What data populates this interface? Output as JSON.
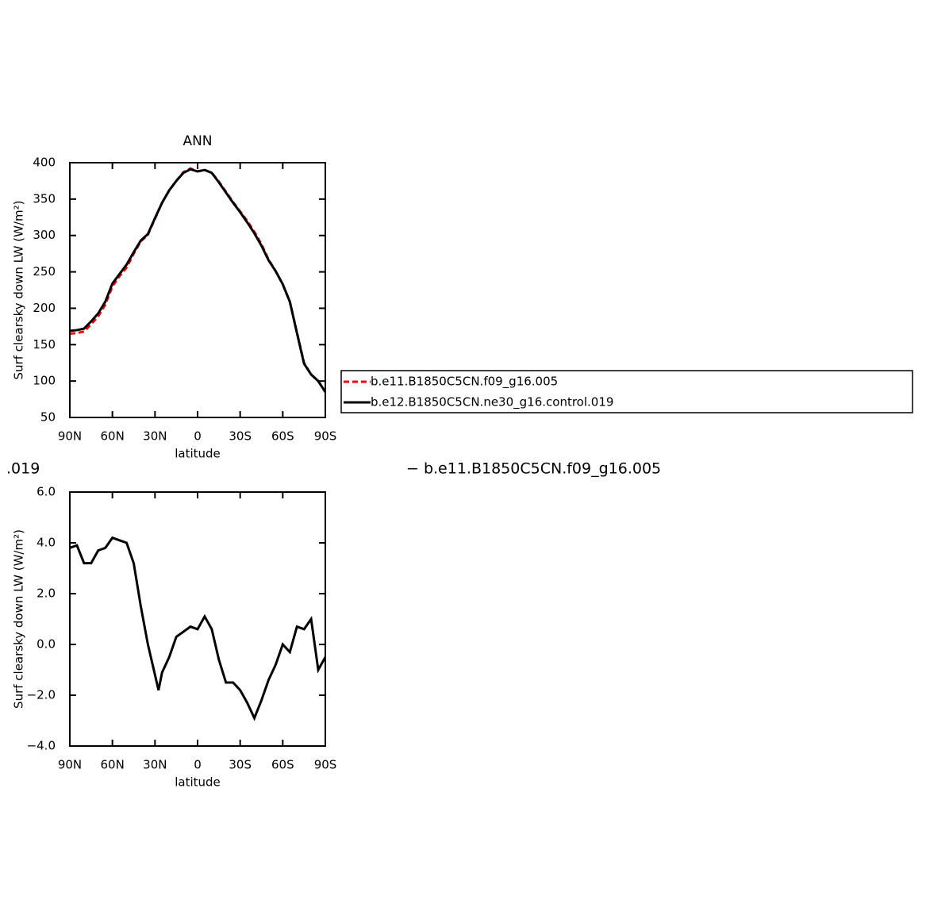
{
  "chart_data": [
    {
      "type": "line",
      "title": "ANN",
      "xlabel": "latitude",
      "ylabel": "Surf clearsky down LW (W/m²)",
      "x": [
        90,
        85,
        80,
        75,
        70,
        65,
        60,
        55,
        50,
        45,
        40,
        35,
        30,
        25,
        20,
        15,
        10,
        5,
        0,
        -5,
        -10,
        -15,
        -20,
        -25,
        -30,
        -35,
        -40,
        -45,
        -50,
        -55,
        -60,
        -65,
        -70,
        -75,
        -80,
        -85,
        -90
      ],
      "series": [
        {
          "name": "b.e11.B1850C5CN.f09_g16.005",
          "color": "#ff0000",
          "line_style": "dashed",
          "values": [
            165,
            166,
            168,
            178,
            189,
            205,
            230,
            244,
            256,
            275,
            292,
            301,
            323,
            345,
            362,
            375,
            387,
            392,
            388,
            390,
            386,
            374,
            360,
            346,
            333,
            320,
            305,
            288,
            267,
            251,
            233,
            209,
            167,
            125,
            109,
            100,
            85
          ]
        },
        {
          "name": "b.e12.B1850C5CN.ne30_g16.control.019",
          "color": "#000000",
          "line_style": "solid",
          "values": [
            169,
            170,
            172,
            182,
            193,
            209,
            234,
            247,
            260,
            277,
            293,
            302,
            324,
            345,
            362,
            375,
            386,
            391,
            388,
            390,
            386,
            373,
            359,
            345,
            332,
            318,
            303,
            286,
            266,
            251,
            233,
            209,
            166,
            124,
            109,
            100,
            85
          ]
        }
      ],
      "xlim": [
        90,
        -90
      ],
      "xticks": [
        {
          "value": 90,
          "label": "90N"
        },
        {
          "value": 60,
          "label": "60N"
        },
        {
          "value": 30,
          "label": "30N"
        },
        0,
        {
          "value": -30,
          "label": "30S"
        },
        {
          "value": -60,
          "label": "60S"
        },
        {
          "value": -90,
          "label": "90S"
        }
      ],
      "ylim": [
        50,
        400
      ],
      "yticks": [
        50,
        100,
        150,
        200,
        250,
        300,
        350,
        400
      ],
      "legend": "right"
    },
    {
      "type": "line",
      "xlabel": "latitude",
      "ylabel": "Surf clearsky down LW (W/m²)",
      "x": [
        90,
        85,
        80,
        75,
        70,
        65,
        60,
        55,
        50,
        45,
        40,
        35,
        30,
        27.5,
        25,
        20,
        15,
        10,
        5,
        0,
        -5,
        -10,
        -15,
        -20,
        -25,
        -30,
        -35,
        -40,
        -45,
        -50,
        -55,
        -60,
        -65,
        -70,
        -75,
        -80,
        -85,
        -90
      ],
      "series": [
        {
          "color": "#000000",
          "line_style": "solid",
          "values": [
            3.8,
            3.9,
            3.2,
            3.2,
            3.7,
            3.8,
            4.2,
            4.1,
            4.0,
            3.2,
            1.5,
            0.0,
            -1.2,
            -1.8,
            -1.1,
            -0.5,
            0.3,
            0.5,
            0.7,
            0.6,
            1.1,
            0.6,
            -0.6,
            -1.5,
            -1.5,
            -1.8,
            -2.3,
            -2.9,
            -2.2,
            -1.4,
            -0.8,
            0.0,
            -0.3,
            0.7,
            0.6,
            1.0,
            -1.0,
            -0.5
          ]
        }
      ],
      "xlim": [
        90,
        -90
      ],
      "xticks": [
        {
          "value": 90,
          "label": "90N"
        },
        {
          "value": 60,
          "label": "60N"
        },
        {
          "value": 30,
          "label": "30N"
        },
        0,
        {
          "value": -30,
          "label": "30S"
        },
        {
          "value": -60,
          "label": "60S"
        },
        {
          "value": -90,
          "label": "90S"
        }
      ],
      "ylim": [
        -4,
        6
      ],
      "yticks": [
        {
          "value": -4,
          "label": "−4.0"
        },
        {
          "value": -2,
          "label": "−2.0"
        },
        {
          "value": 0,
          "label": "0.0"
        },
        {
          "value": 2,
          "label": "2.0"
        },
        {
          "value": 4,
          "label": "4.0"
        },
        {
          "value": 6,
          "label": "6.0"
        }
      ],
      "annotations": [
        ".019",
        "− b.e11.B1850C5CN.f09_g16.005"
      ]
    }
  ]
}
